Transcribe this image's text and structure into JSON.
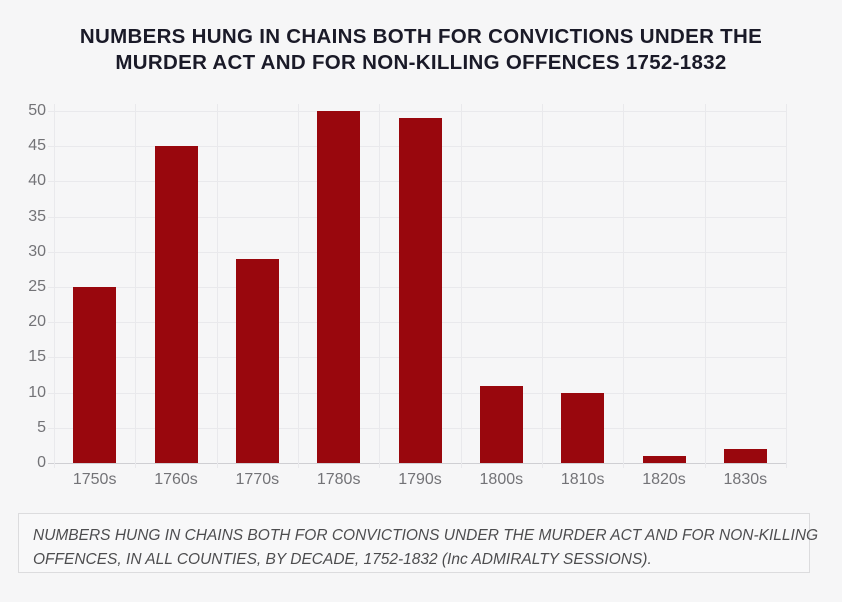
{
  "chart": {
    "title": "NUMBERS HUNG IN CHAINS BOTH FOR CONVICTIONS UNDER THE MURDER ACT AND FOR NON-KILLING OFFENCES 1752-1832",
    "title_lines": [
      "NUMBERS HUNG IN CHAINS BOTH FOR CONVICTIONS UNDER THE",
      "MURDER ACT AND FOR NON-KILLING OFFENCES 1752-1832"
    ],
    "caption": "NUMBERS HUNG IN CHAINS BOTH FOR CONVICTIONS UNDER THE MURDER ACT AND FOR NON-KILLING OFFENCES, IN ALL COUNTIES, BY DECADE, 1752-1832 (Inc ADMIRALTY SESSIONS).",
    "caption_lines": [
      "NUMBERS HUNG IN CHAINS BOTH FOR CONVICTIONS UNDER THE MURDER ACT AND FOR NON-KILLING",
      "OFFENCES, IN ALL COUNTIES, BY DECADE, 1752-1832 (Inc ADMIRALTY SESSIONS)."
    ]
  },
  "chart_data": {
    "type": "bar",
    "title": "NUMBERS HUNG IN CHAINS BOTH FOR CONVICTIONS UNDER THE MURDER ACT AND FOR NON-KILLING OFFENCES 1752-1832",
    "categories": [
      "1750s",
      "1760s",
      "1770s",
      "1780s",
      "1790s",
      "1800s",
      "1810s",
      "1820s",
      "1830s"
    ],
    "values": [
      25,
      45,
      29,
      50,
      49,
      11,
      10,
      1,
      2
    ],
    "xlabel": "",
    "ylabel": "",
    "ylim": [
      0,
      50
    ],
    "yticks": [
      0,
      5,
      10,
      15,
      20,
      25,
      30,
      35,
      40,
      45,
      50
    ],
    "grid": true,
    "legend_position": "none",
    "caption": "NUMBERS HUNG IN CHAINS BOTH FOR CONVICTIONS UNDER THE MURDER ACT AND FOR NON-KILLING OFFENCES, IN ALL COUNTIES, BY DECADE, 1752-1832 (Inc ADMIRALTY SESSIONS)."
  },
  "colors": {
    "background": "#f6f6f7",
    "bar": "#99070d",
    "grid": "#e9e9ec",
    "baseline": "#cfcfd3",
    "tick_label": "#737377",
    "title": "#1a1a28",
    "caption_text": "#4d4d4f",
    "caption_border": "#dcdcde",
    "caption_background": "#f8f8f9"
  }
}
